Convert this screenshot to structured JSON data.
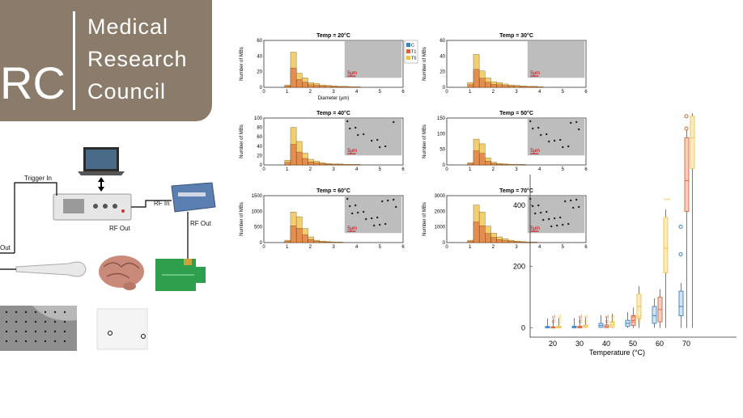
{
  "logo": {
    "partial": "RC",
    "lines": [
      "Medical",
      "Research",
      "Council"
    ]
  },
  "setup": {
    "trigger_in": "Trigger In",
    "rf_in": "RF In",
    "rf_out_1": "RF Out",
    "rf_out_2": "RF Out",
    "out": "Out"
  },
  "histograms": {
    "legend": [
      "C",
      "T1",
      "T5"
    ],
    "ylabel": "Number of MBs",
    "xlabel": "Diameter (μm)",
    "scale": "5μm",
    "panels": [
      {
        "title": "Temp = 20°C",
        "ymax": 60,
        "yticks": [
          0,
          20,
          40,
          60
        ]
      },
      {
        "title": "Temp = 30°C",
        "ymax": 60,
        "yticks": [
          0,
          20,
          40,
          60
        ]
      },
      {
        "title": "Temp = 40°C",
        "ymax": 100,
        "yticks": [
          0,
          20,
          40,
          60,
          80,
          100
        ]
      },
      {
        "title": "Temp = 50°C",
        "ymax": 150,
        "yticks": [
          0,
          50,
          100,
          150
        ]
      },
      {
        "title": "Temp = 60°C",
        "ymax": 1500,
        "yticks": [
          0,
          500,
          1000,
          1500
        ]
      },
      {
        "title": "Temp = 70°C",
        "ymax": 3000,
        "yticks": [
          0,
          1000,
          2000,
          3000
        ]
      }
    ],
    "xticks": [
      0,
      1,
      2,
      3,
      4,
      5,
      6
    ]
  },
  "colors": {
    "C": "#3b84c4",
    "T1": "#d9643a",
    "T5": "#f0c24a",
    "frame": "#8a7b6a"
  },
  "chart_data": {
    "type": "box",
    "xlabel": "Temperature (°C)",
    "categories": [
      "20",
      "30",
      "40",
      "50",
      "60",
      "70"
    ],
    "yticks": [
      0,
      200,
      400
    ],
    "sig_labels": [
      "n.s.",
      "***",
      "**"
    ]
  }
}
